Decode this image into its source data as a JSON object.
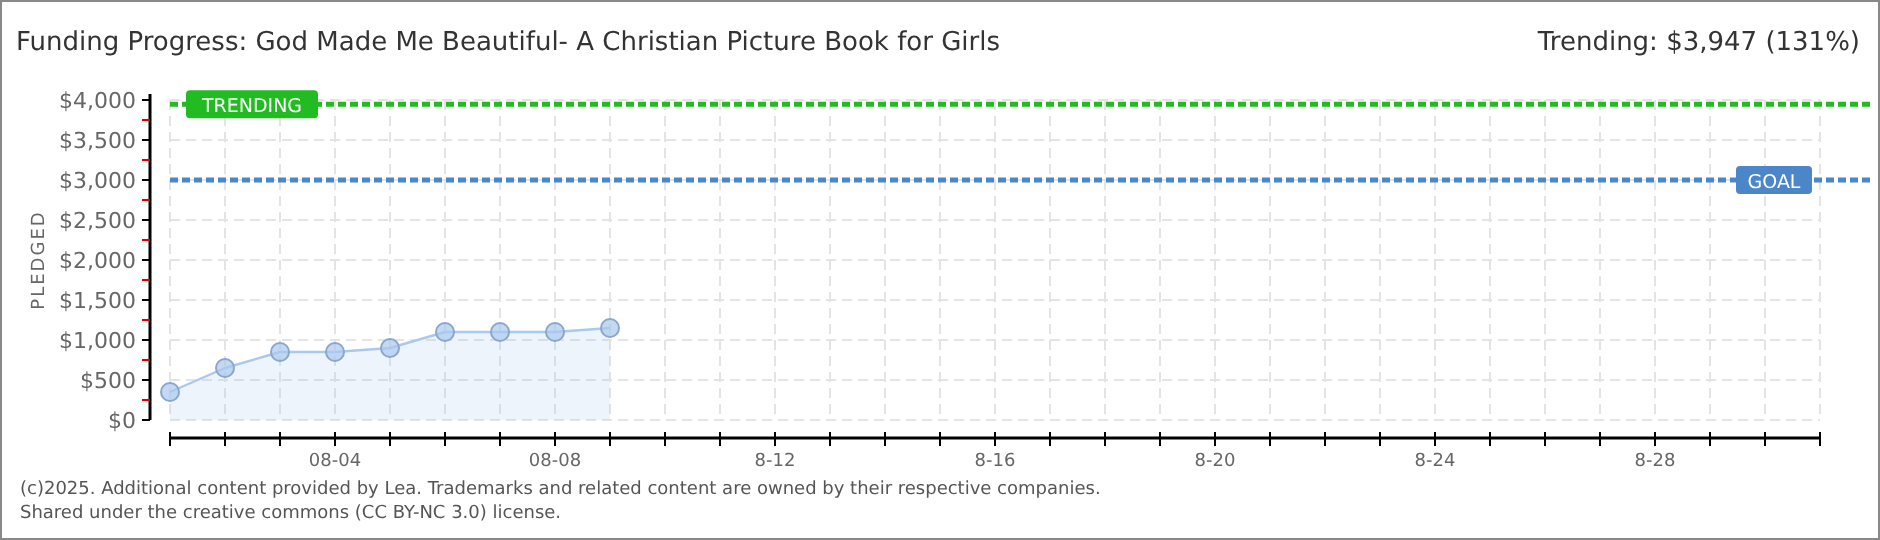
{
  "chart_data": {
    "type": "area",
    "title": "Funding Progress: God Made Me Beautiful- A Christian Picture Book for Girls",
    "ylabel": "PLEDGED",
    "annotations": [
      "Trending: $3,947 (131%)",
      "(c)2025. Additional content provided by Lea. Trademarks and related content are owned by their respective companies.",
      "Shared under the creative commons (CC BY-NC 3.0) license."
    ],
    "x": [
      "--08-01",
      "--08-02",
      "--08-03",
      "--08-04",
      "--08-05",
      "--08-06",
      "--08-07",
      "--08-08",
      "--08-09"
    ],
    "series": [
      {
        "color": "#a9c9ee",
        "values": [
          350,
          650,
          850,
          850,
          900,
          1100,
          1100,
          1100,
          1150
        ]
      }
    ],
    "xlim": [
      "--08-01",
      "--08-31"
    ],
    "xticks": [
      {
        "value": "--08-01",
        "label": null
      },
      {
        "value": "--08-02",
        "label": null
      },
      {
        "value": "--08-03",
        "label": null
      },
      {
        "value": "--08-04",
        "label": "08-04"
      },
      {
        "value": "--08-05",
        "label": null
      },
      {
        "value": "--08-06",
        "label": null
      },
      {
        "value": "--08-07",
        "label": null
      },
      {
        "value": "--08-08",
        "label": "08-08"
      },
      {
        "value": "--08-09",
        "label": null
      },
      {
        "value": "--08-10",
        "label": null
      },
      {
        "value": "--08-11",
        "label": null
      },
      {
        "value": "--08-12",
        "label": "8-12"
      },
      {
        "value": "--08-13",
        "label": null
      },
      {
        "value": "--08-14",
        "label": null
      },
      {
        "value": "--08-15",
        "label": null
      },
      {
        "value": "--08-16",
        "label": "8-16"
      },
      {
        "value": "--08-17",
        "label": null
      },
      {
        "value": "--08-18",
        "label": null
      },
      {
        "value": "--08-19",
        "label": null
      },
      {
        "value": "--08-20",
        "label": "8-20"
      },
      {
        "value": "--08-21",
        "label": null
      },
      {
        "value": "--08-22",
        "label": null
      },
      {
        "value": "--08-23",
        "label": null
      },
      {
        "value": "--08-24",
        "label": "8-24"
      },
      {
        "value": "--08-25",
        "label": null
      },
      {
        "value": "--08-26",
        "label": null
      },
      {
        "value": "--08-27",
        "label": null
      },
      {
        "value": "--08-28",
        "label": "8-28"
      },
      {
        "value": "--08-29",
        "label": null
      },
      {
        "value": "--08-30",
        "label": null
      },
      {
        "value": "--08-31",
        "label": null
      }
    ],
    "ylim": [
      0,
      4000
    ],
    "yticks": [
      {
        "value": 0,
        "label": "$0"
      },
      {
        "value": 250,
        "label": null
      },
      {
        "value": 500,
        "label": "$500"
      },
      {
        "value": 750,
        "label": null
      },
      {
        "value": 1000,
        "label": "$1,000"
      },
      {
        "value": 1250,
        "label": null
      },
      {
        "value": 1500,
        "label": "$1,500"
      },
      {
        "value": 1750,
        "label": null
      },
      {
        "value": 2000,
        "label": "$2,000"
      },
      {
        "value": 2250,
        "label": null
      },
      {
        "value": 2500,
        "label": "$2,500"
      },
      {
        "value": 2750,
        "label": null
      },
      {
        "value": 3000,
        "label": "$3,000"
      },
      {
        "value": 3250,
        "label": null
      },
      {
        "value": 3500,
        "label": "$3,500"
      },
      {
        "value": 3750,
        "label": null
      },
      {
        "value": 4000,
        "label": "$4,000"
      }
    ],
    "ref_lines": [
      {
        "axis": "y",
        "value": 3947,
        "label": "TRENDING",
        "color": "#22bb22",
        "line_style": "dashed"
      },
      {
        "axis": "y",
        "value": 3000,
        "label": "GOAL",
        "color": "#4a86c8",
        "line_style": "dashed"
      }
    ],
    "grid": true,
    "marker": "circle"
  }
}
